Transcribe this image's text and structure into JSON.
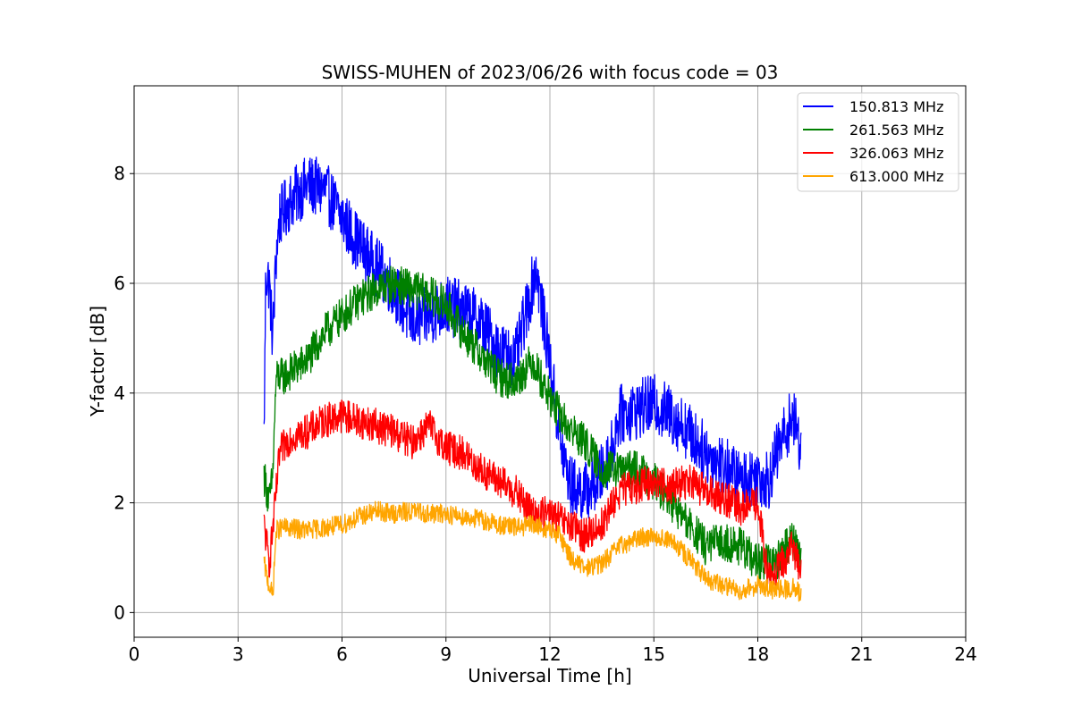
{
  "chart_data": {
    "type": "line",
    "title": "SWISS-MUHEN of 2023/06/26 with focus code = 03",
    "xlabel": "Universal Time [h]",
    "ylabel": "Y-factor [dB]",
    "xlim": [
      0,
      24
    ],
    "ylim": [
      -0.45,
      9.6
    ],
    "xticks": [
      0,
      3,
      6,
      9,
      12,
      15,
      18,
      21,
      24
    ],
    "xtick_labels": [
      "0",
      "3",
      "6",
      "9",
      "12",
      "15",
      "18",
      "21",
      "24"
    ],
    "yticks": [
      0,
      2,
      4,
      6,
      8
    ],
    "ytick_labels": [
      "0",
      "2",
      "4",
      "6",
      "8"
    ],
    "grid": true,
    "legend_position": "top-right",
    "series": [
      {
        "name": "150.813 MHz",
        "color": "#0000ff",
        "x": [
          3.75,
          3.8,
          3.9,
          4.0,
          4.1,
          4.2,
          4.5,
          5.0,
          5.5,
          6.0,
          6.5,
          7.0,
          7.5,
          8.0,
          8.5,
          9.0,
          9.5,
          10.0,
          10.5,
          11.0,
          11.4,
          11.6,
          11.8,
          12.0,
          12.3,
          12.6,
          13.0,
          13.4,
          13.8,
          14.0,
          14.5,
          15.0,
          15.5,
          16.0,
          16.5,
          17.0,
          17.5,
          18.0,
          18.3,
          18.6,
          19.0,
          19.25
        ],
        "y": [
          3.2,
          6.2,
          6.0,
          5.0,
          6.5,
          7.2,
          7.5,
          7.8,
          7.7,
          7.2,
          6.7,
          6.3,
          5.9,
          5.3,
          5.4,
          5.6,
          5.5,
          5.3,
          4.8,
          4.6,
          5.7,
          6.3,
          5.4,
          4.6,
          3.1,
          2.3,
          2.2,
          2.4,
          3.0,
          3.6,
          3.7,
          3.8,
          3.6,
          3.3,
          2.9,
          2.7,
          2.4,
          2.5,
          2.4,
          3.0,
          3.6,
          3.0
        ]
      },
      {
        "name": "261.563 MHz",
        "color": "#008000",
        "x": [
          3.75,
          3.9,
          4.0,
          4.1,
          4.3,
          5.0,
          5.5,
          6.0,
          6.5,
          7.0,
          7.5,
          8.0,
          8.5,
          9.0,
          9.5,
          10.0,
          10.5,
          11.0,
          11.5,
          12.0,
          12.5,
          13.0,
          13.5,
          14.0,
          14.5,
          15.0,
          15.5,
          16.0,
          16.5,
          17.0,
          17.5,
          18.0,
          18.5,
          19.0,
          19.25
        ],
        "y": [
          2.5,
          2.0,
          2.5,
          4.3,
          4.3,
          4.6,
          5.1,
          5.4,
          5.7,
          5.9,
          6.0,
          5.9,
          5.8,
          5.6,
          5.1,
          4.7,
          4.3,
          4.2,
          4.6,
          3.9,
          3.4,
          3.1,
          2.6,
          2.6,
          2.6,
          2.4,
          2.0,
          1.6,
          1.2,
          1.3,
          1.2,
          0.9,
          0.9,
          1.4,
          1.0
        ]
      },
      {
        "name": "326.063 MHz",
        "color": "#ff0000",
        "x": [
          3.75,
          3.9,
          4.0,
          4.2,
          4.5,
          5.0,
          5.5,
          6.0,
          6.5,
          7.0,
          7.5,
          8.0,
          8.5,
          9.0,
          9.5,
          10.0,
          10.5,
          11.0,
          11.5,
          12.0,
          12.5,
          13.0,
          13.5,
          14.0,
          14.5,
          15.0,
          15.5,
          16.0,
          16.5,
          17.0,
          17.5,
          18.0,
          18.3,
          18.6,
          19.0,
          19.25
        ],
        "y": [
          1.6,
          0.9,
          1.5,
          2.9,
          3.2,
          3.3,
          3.5,
          3.6,
          3.5,
          3.4,
          3.3,
          3.1,
          3.4,
          3.0,
          2.9,
          2.6,
          2.4,
          2.2,
          1.8,
          1.8,
          1.6,
          1.4,
          1.6,
          2.2,
          2.3,
          2.4,
          2.3,
          2.4,
          2.2,
          2.1,
          1.9,
          2.0,
          0.6,
          0.8,
          1.2,
          0.8
        ]
      },
      {
        "name": "613.000 MHz",
        "color": "#ffa500",
        "x": [
          3.75,
          3.85,
          4.0,
          4.1,
          4.3,
          5.0,
          5.5,
          6.0,
          6.5,
          7.0,
          7.5,
          8.0,
          8.5,
          9.0,
          9.5,
          10.0,
          10.5,
          11.0,
          11.5,
          12.0,
          12.3,
          12.6,
          13.0,
          13.5,
          14.0,
          14.5,
          15.0,
          15.5,
          16.0,
          16.5,
          17.0,
          17.5,
          18.0,
          18.5,
          19.0,
          19.25
        ],
        "y": [
          0.9,
          0.6,
          0.3,
          1.5,
          1.55,
          1.5,
          1.55,
          1.6,
          1.75,
          1.85,
          1.8,
          1.85,
          1.8,
          1.8,
          1.75,
          1.7,
          1.6,
          1.55,
          1.6,
          1.5,
          1.4,
          1.0,
          0.8,
          0.9,
          1.2,
          1.35,
          1.4,
          1.3,
          1.0,
          0.6,
          0.5,
          0.4,
          0.5,
          0.4,
          0.45,
          0.35
        ]
      }
    ]
  }
}
